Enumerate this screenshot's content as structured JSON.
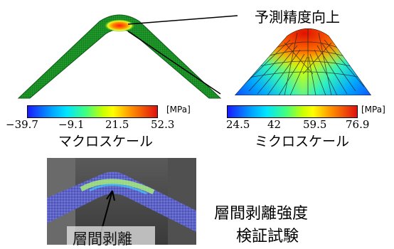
{
  "top_right_label": "予測精度向上",
  "macro": {
    "unit": "[MPa]",
    "ticks": [
      "−39.7",
      "−9.1",
      "21.5",
      "52.3"
    ],
    "caption": "マクロスケール"
  },
  "micro": {
    "unit": "[MPa]",
    "ticks": [
      "24.5",
      "42",
      "59.5",
      "76.9"
    ],
    "caption": "ミクロスケール"
  },
  "photo_label": "層間剥離",
  "test_label": [
    "層間剥離強度",
    "検証試験"
  ]
}
